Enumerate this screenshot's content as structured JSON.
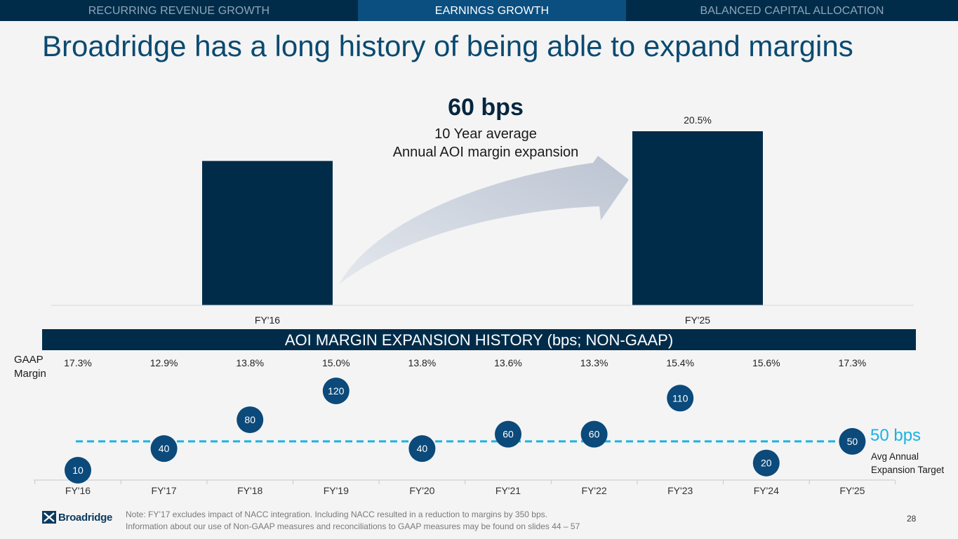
{
  "tabs": [
    {
      "label": "RECURRING REVENUE GROWTH",
      "active": false
    },
    {
      "label": "EARNINGS GROWTH",
      "active": true
    },
    {
      "label": "BALANCED CAPITAL ALLOCATION",
      "active": false
    }
  ],
  "title": "Broadridge has a long history of being able to expand margins",
  "callout": {
    "value": "60 bps",
    "line1": "10 Year average",
    "line2": "Annual AOI margin expansion"
  },
  "history_header": "AOI MARGIN EXPANSION HISTORY (bps; NON-GAAP)",
  "gaap_label": "GAAP Margin",
  "target": {
    "value": "50 bps",
    "label": "Avg Annual Expansion Target"
  },
  "footnote": {
    "line1": "Note: FY’17 excludes impact of NACC integration. Including NACC resulted in a reduction to margins by 350 bps.",
    "line2": "Information about our use of Non-GAAP measures and reconciliations to GAAP measures may be found on slides 44 – 57"
  },
  "page_number": "28",
  "logo": {
    "name": "Broadridge"
  },
  "colors": {
    "navy": "#002c4a",
    "active_tab": "#0b4f80",
    "circle": "#0b4a7a",
    "target_line": "#19b3e3",
    "arrow": "#c8cfdb"
  },
  "chart_data": [
    {
      "type": "bar",
      "categories": [
        "FY'16",
        "FY'25"
      ],
      "values": [
        17.0,
        20.5
      ],
      "data_labels": [
        "",
        "20.5%"
      ],
      "ylim": [
        0,
        20.5
      ],
      "grid": false,
      "legend": "none"
    },
    {
      "type": "scatter",
      "categories": [
        "FY'16",
        "FY'17",
        "FY'18",
        "FY'19",
        "FY'20",
        "FY'21",
        "FY'22",
        "FY'23",
        "FY'24",
        "FY'25"
      ],
      "values": [
        10,
        40,
        80,
        120,
        40,
        60,
        60,
        110,
        20,
        50
      ],
      "gaap_margin": [
        "17.3%",
        "12.9%",
        "13.8%",
        "15.0%",
        "13.8%",
        "13.6%",
        "13.3%",
        "15.4%",
        "15.6%",
        "17.3%"
      ],
      "target_line": 50,
      "grid": false,
      "legend": "none"
    }
  ]
}
